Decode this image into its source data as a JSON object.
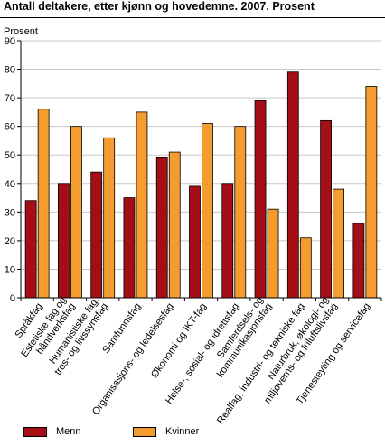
{
  "chart_data": {
    "type": "bar",
    "title": "Antall deltakere, etter kjønn og hovedemne. 2007. Prosent",
    "ylabel": "Prosent",
    "xlabel": "",
    "ylim": [
      0,
      90
    ],
    "yticks": [
      0,
      10,
      20,
      30,
      40,
      50,
      60,
      70,
      80,
      90
    ],
    "grid": true,
    "legend_position": "bottom",
    "categories": [
      "Språkfag",
      "Estetiske fag og håndverksfag",
      "Humanistiske fag, tros- og livssynsfag",
      "Samfunnsfag",
      "Organisasjons- og ledelsesfag",
      "Økonomi og IKT-fag",
      "Helse-, sosial- og idrettsfag",
      "Samferdsels- og kommunikasjonsfag",
      "Realfag, industri- og tekniske fag",
      "Naturbruk, økologi- og miljøverns- og friluftslivsfag",
      "Tjenesteyting og servicefag"
    ],
    "category_label_lines": [
      [
        "Språkfag"
      ],
      [
        "Estetiske fag og",
        "håndverksfag"
      ],
      [
        "Humanistiske fag,",
        "tros- og livssynsfag"
      ],
      [
        "Samfunnsfag"
      ],
      [
        "Organisasjons- og ledelsesfag"
      ],
      [
        "Økonomi og IKT-fag"
      ],
      [
        "Helse-, sosial- og idrettsfag"
      ],
      [
        "Samferdsels- og",
        "kommunikasjonsfag"
      ],
      [
        "Realfag, industri- og tekniske fag"
      ],
      [
        "Naturbruk, økologi- og",
        "miljøverns- og friluftslivsfag"
      ],
      [
        "Tjenesteyting og servicefag"
      ]
    ],
    "series": [
      {
        "name": "Menn",
        "color": "#a50e14",
        "values": [
          34,
          40,
          44,
          35,
          49,
          39,
          40,
          69,
          79,
          62,
          26
        ]
      },
      {
        "name": "Kvinner",
        "color": "#f59c2f",
        "values": [
          66,
          60,
          56,
          65,
          51,
          61,
          60,
          31,
          21,
          38,
          74
        ]
      }
    ]
  }
}
